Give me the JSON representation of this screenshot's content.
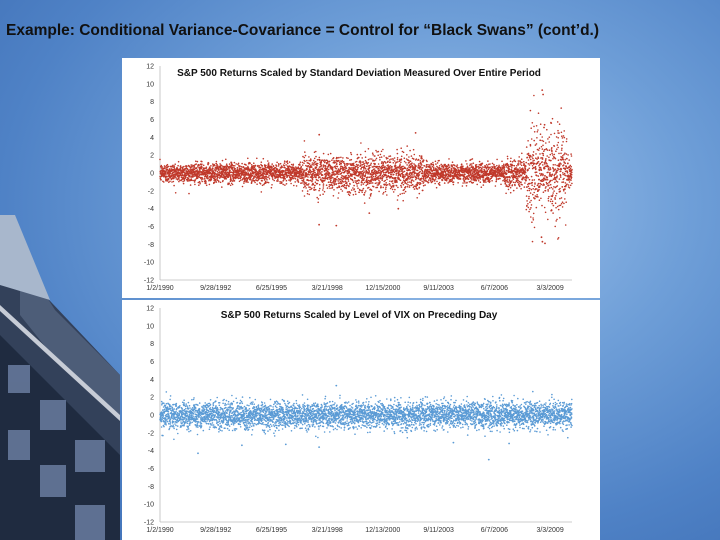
{
  "slide": {
    "title": "Example: Conditional Variance-Covariance = Control for “Black Swans” (cont’d.)"
  },
  "chart_data": [
    {
      "type": "scatter",
      "title": "S&P 500 Returns Scaled by Standard Deviation Measured Over Entire Period",
      "color": "#c0392b",
      "ylim": [
        -12,
        12
      ],
      "y_ticks": [
        "12",
        "10",
        "8",
        "6",
        "4",
        "2",
        "0",
        "-2",
        "-4",
        "-6",
        "-8",
        "-10",
        "-12"
      ],
      "x_range": [
        "1990-01-02",
        "2010-03-31"
      ],
      "x_ticks": [
        "1/2/1990",
        "9/28/1992",
        "6/25/1995",
        "3/21/1998",
        "12/15/2000",
        "9/11/2003",
        "6/7/2006",
        "3/3/2009"
      ],
      "grid": false,
      "n_points_estimated": 5100,
      "base_spread_sd": [
        {
          "period": "1990-1996",
          "sd": 0.55
        },
        {
          "period": "1997-2002",
          "sd": 1.05
        },
        {
          "period": "2003-2006",
          "sd": 0.55
        },
        {
          "period": "2007",
          "sd": 0.85
        },
        {
          "period": "2008-2009",
          "sd": 2.4
        },
        {
          "period": "2010",
          "sd": 0.95
        }
      ],
      "notable_points": [
        {
          "x": "2008-10-13",
          "y": 9.3
        },
        {
          "x": "2008-10-28",
          "y": 8.8
        },
        {
          "x": "2008-10-15",
          "y": -7.7
        },
        {
          "x": "2008-12-01",
          "y": -7.9
        },
        {
          "x": "2008-09-29",
          "y": -7.2
        },
        {
          "x": "1997-10-27",
          "y": -5.8
        },
        {
          "x": "1998-08-31",
          "y": -5.9
        },
        {
          "x": "1997-10-28",
          "y": 4.3
        },
        {
          "x": "2008-11-24",
          "y": 5.4
        },
        {
          "x": "2009-03-23",
          "y": 5.6
        },
        {
          "x": "2008-11-13",
          "y": 5.1
        },
        {
          "x": "2001-09-17",
          "y": -4.0
        },
        {
          "x": "2002-07-24",
          "y": 4.5
        },
        {
          "x": "2000-04-14",
          "y": -4.5
        }
      ]
    },
    {
      "type": "scatter",
      "title": "S&P 500 Returns Scaled by Level of VIX on Preceding Day",
      "color": "#5b9bd5",
      "ylim": [
        -12,
        12
      ],
      "y_ticks": [
        "12",
        "10",
        "8",
        "6",
        "4",
        "2",
        "0",
        "-2",
        "-4",
        "-6",
        "-8",
        "-10",
        "-12"
      ],
      "x_range": [
        "1990-01-02",
        "2010-03-31"
      ],
      "x_ticks": [
        "1/2/1990",
        "9/28/1992",
        "6/25/1995",
        "3/21/1998",
        "12/13/2000",
        "9/11/2003",
        "6/7/2006",
        "3/3/2009"
      ],
      "grid": false,
      "n_points_estimated": 5100,
      "base_spread_sd": [
        {
          "period": "1990-2010",
          "sd": 0.75
        }
      ],
      "notable_points": [
        {
          "x": "1991-11-15",
          "y": -4.3
        },
        {
          "x": "2006-02-27",
          "y": -5.0
        },
        {
          "x": "1997-10-27",
          "y": -3.6
        },
        {
          "x": "1994-01-10",
          "y": -3.4
        },
        {
          "x": "1996-03-08",
          "y": -3.3
        },
        {
          "x": "1998-08-31",
          "y": 3.3
        },
        {
          "x": "2007-02-27",
          "y": -3.2
        },
        {
          "x": "2004-06-01",
          "y": -3.1
        }
      ]
    }
  ]
}
